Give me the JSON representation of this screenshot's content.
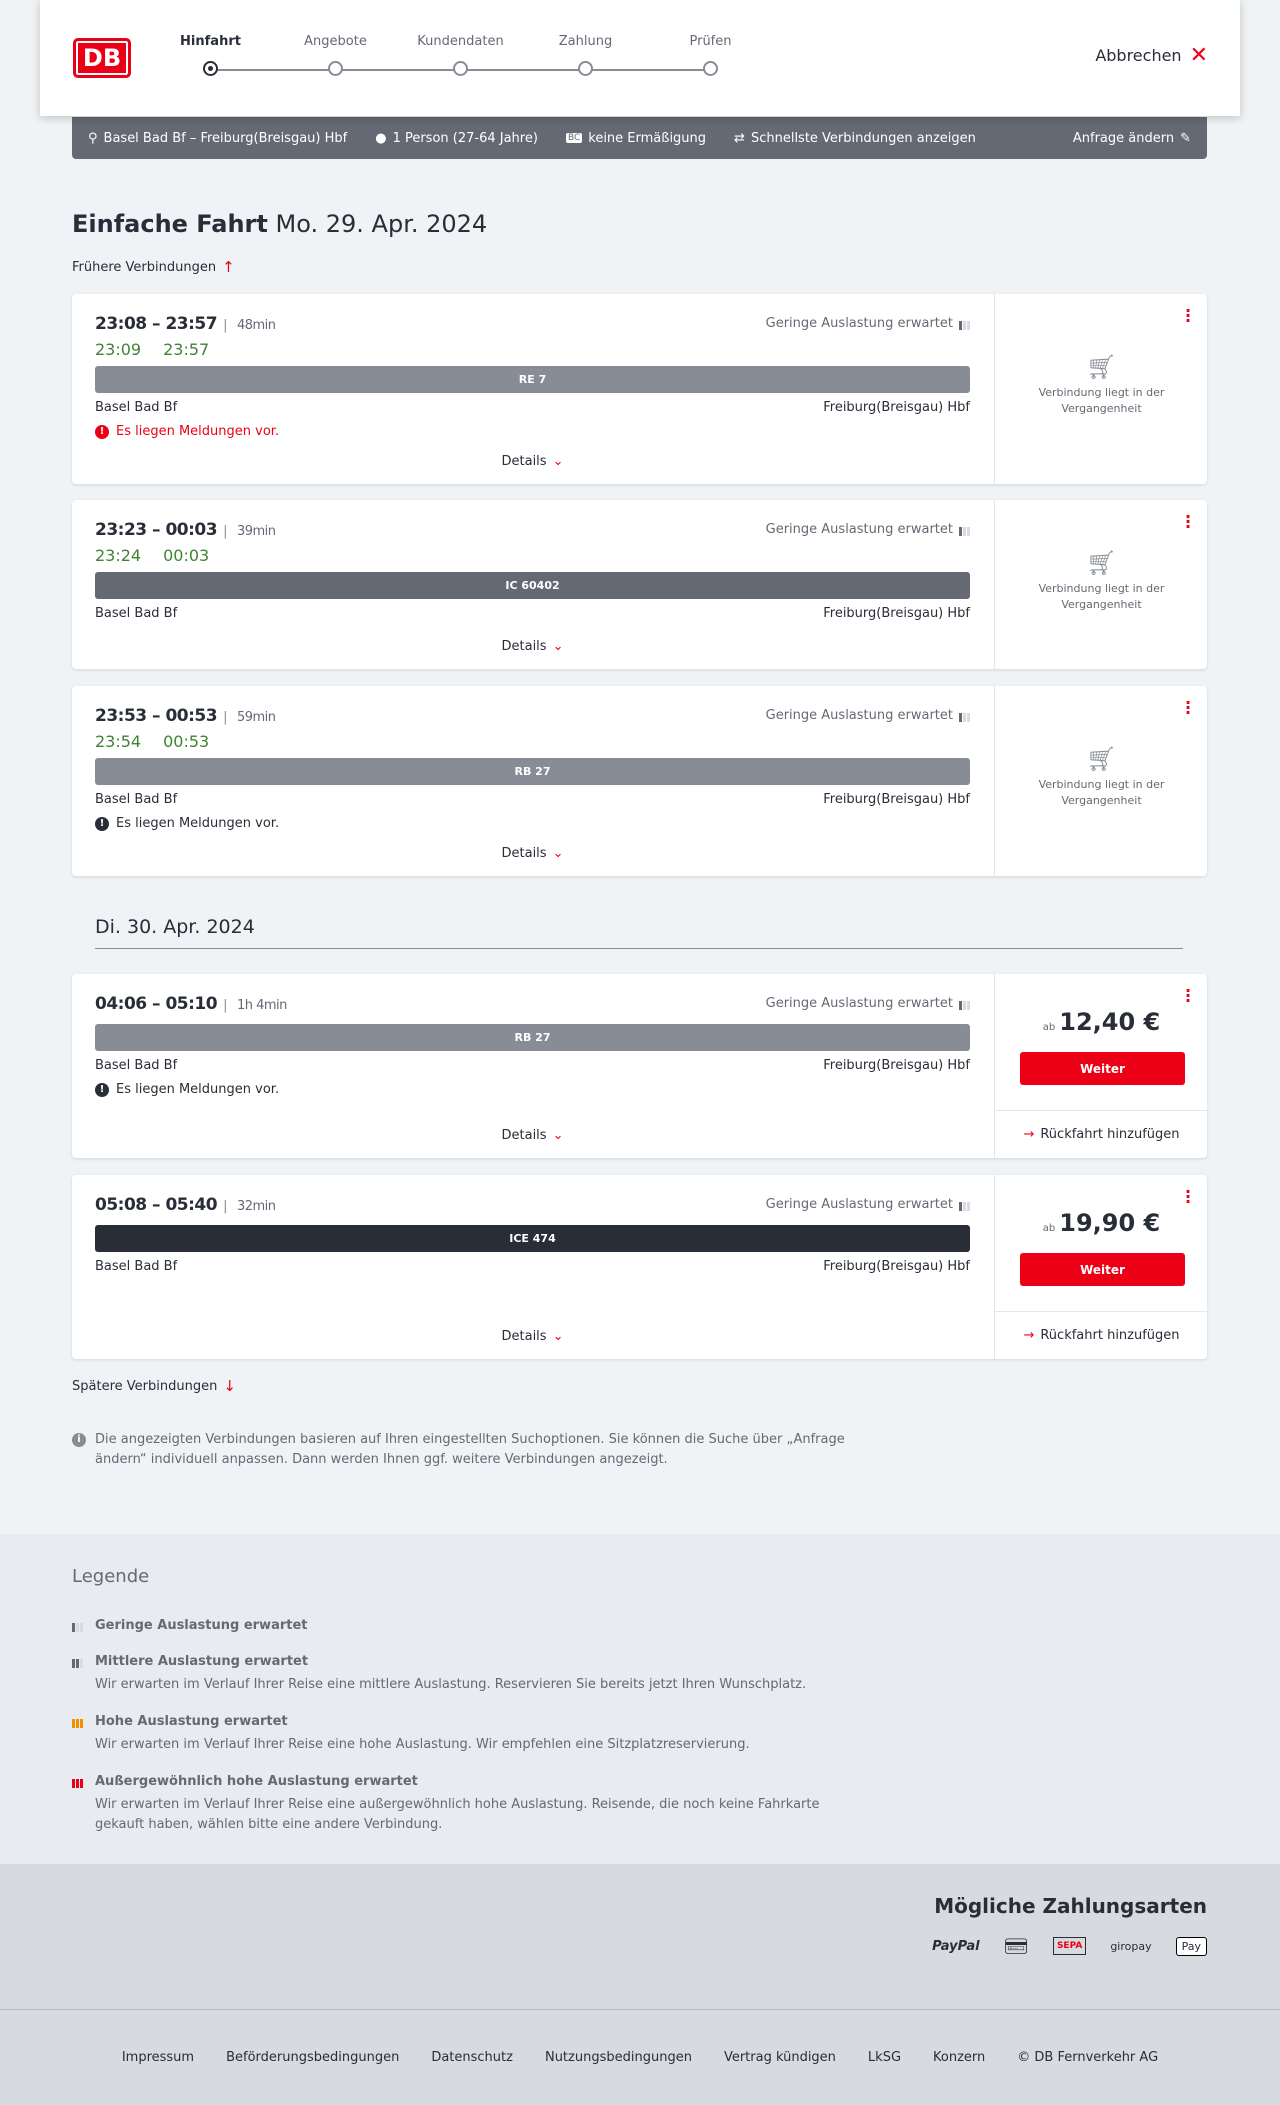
{
  "header": {
    "logo": "DB",
    "steps": [
      "Hinfahrt",
      "Angebote",
      "Kundendaten",
      "Zahlung",
      "Prüfen"
    ],
    "active_step": 0,
    "cancel": "Abbrechen"
  },
  "summary": {
    "route": "Basel Bad Bf – Freiburg(Breisgau) Hbf",
    "persons": "1 Person (27-64 Jahre)",
    "discount": "keine Ermäßigung",
    "fastest": "Schnellste Verbindungen anzeigen",
    "edit": "Anfrage ändern"
  },
  "title": {
    "type": "Einfache Fahrt",
    "date": "Mo. 29. Apr. 2024"
  },
  "earlier": "Frühere Verbindungen",
  "later": "Spätere Verbindungen",
  "day2": "Di. 30. Apr. 2024",
  "colors": {
    "accent": "#ec0016",
    "realtime": "#408335",
    "regional": "#878c96",
    "ic": "#646973",
    "ice": "#282d37"
  },
  "connections": [
    {
      "times": "23:08 – 23:57",
      "duration": "48min",
      "real_dep": "23:09",
      "real_arr": "23:57",
      "load": "Geringe Auslastung erwartet",
      "train": "RE 7",
      "train_color": "#878c96",
      "from": "Basel Bad Bf",
      "to": "Freiburg(Breisgau) Hbf",
      "message": "Es liegen Meldungen vor.",
      "message_color": "#ec0016",
      "details": "Details",
      "past": "Verbindung liegt in der Vergangenheit"
    },
    {
      "times": "23:23 – 00:03",
      "duration": "39min",
      "real_dep": "23:24",
      "real_arr": "00:03",
      "load": "Geringe Auslastung erwartet",
      "train": "IC 60402",
      "train_color": "#646973",
      "from": "Basel Bad Bf",
      "to": "Freiburg(Breisgau) Hbf",
      "details": "Details",
      "past": "Verbindung liegt in der Vergangenheit"
    },
    {
      "times": "23:53 – 00:53",
      "duration": "59min",
      "real_dep": "23:54",
      "real_arr": "00:53",
      "load": "Geringe Auslastung erwartet",
      "train": "RB 27",
      "train_color": "#878c96",
      "from": "Basel Bad Bf",
      "to": "Freiburg(Breisgau) Hbf",
      "message": "Es liegen Meldungen vor.",
      "message_color": "#282d37",
      "details": "Details",
      "past": "Verbindung liegt in der Vergangenheit"
    },
    {
      "times": "04:06 – 05:10",
      "duration": "1h 4min",
      "load": "Geringe Auslastung erwartet",
      "train": "RB 27",
      "train_color": "#878c96",
      "from": "Basel Bad Bf",
      "to": "Freiburg(Breisgau) Hbf",
      "message": "Es liegen Meldungen vor.",
      "message_color": "#282d37",
      "details": "Details",
      "price_prefix": "ab",
      "price": "12,40 €",
      "button": "Weiter",
      "return": "Rückfahrt hinzufügen"
    },
    {
      "times": "05:08 – 05:40",
      "duration": "32min",
      "load": "Geringe Auslastung erwartet",
      "train": "ICE 474",
      "train_color": "#282d37",
      "from": "Basel Bad Bf",
      "to": "Freiburg(Breisgau) Hbf",
      "details": "Details",
      "price_prefix": "ab",
      "price": "19,90 €",
      "button": "Weiter",
      "return": "Rückfahrt hinzufügen"
    }
  ],
  "info": "Die angezeigten Verbindungen basieren auf Ihren eingestellten Suchoptionen. Sie können die Suche über „Anfrage ändern“ individuell anpassen. Dann werden Ihnen ggf. weitere Verbindungen angezeigt.",
  "legend": {
    "title": "Legende",
    "items": [
      {
        "title": "Geringe Auslastung erwartet",
        "level": 1,
        "color": "#646973"
      },
      {
        "title": "Mittlere Auslastung erwartet",
        "desc": "Wir erwarten im Verlauf Ihrer Reise eine mittlere Auslastung. Reservieren Sie bereits jetzt Ihren Wunschplatz.",
        "level": 2,
        "color": "#646973"
      },
      {
        "title": "Hohe Auslastung erwartet",
        "desc": "Wir erwarten im Verlauf Ihrer Reise eine hohe Auslastung. Wir empfehlen eine Sitzplatzreservierung.",
        "level": 3,
        "color": "#f39200"
      },
      {
        "title": "Außergewöhnlich hohe Auslastung erwartet",
        "desc": "Wir erwarten im Verlauf Ihrer Reise eine außergewöhnlich hohe Auslastung. Reisende, die noch keine Fahrkarte gekauft haben, wählen bitte eine andere Verbindung.",
        "level": 4,
        "color": "#ec0016"
      }
    ]
  },
  "payment": {
    "title": "Mögliche Zahlungsarten",
    "methods": [
      "PayPal",
      "Kreditkarte",
      "SEPA",
      "giropay",
      "Pay"
    ]
  },
  "footer": [
    "Impressum",
    "Beförderungsbedingungen",
    "Datenschutz",
    "Nutzungsbedingungen",
    "Vertrag kündigen",
    "LkSG",
    "Konzern",
    "© DB Fernverkehr AG"
  ]
}
